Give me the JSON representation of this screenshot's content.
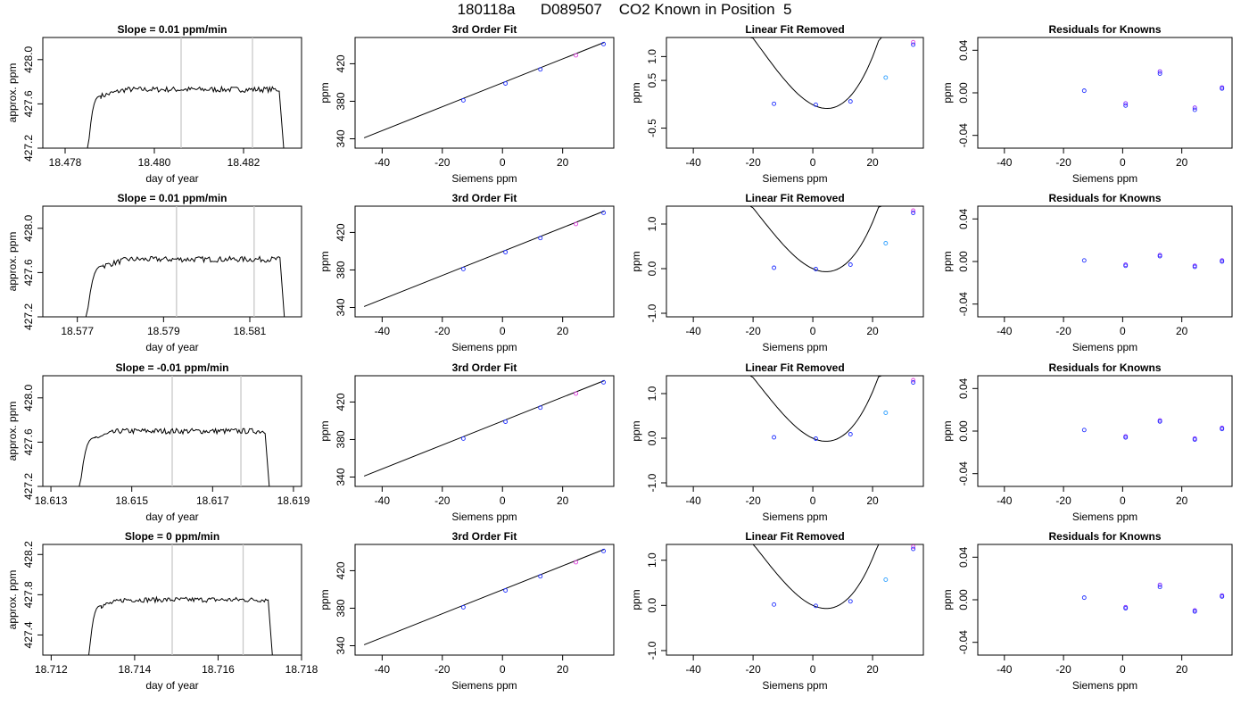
{
  "figure": {
    "title": "180118a      D089507    CO2 Known in Position  5"
  },
  "chart_data": [
    {
      "type": "line",
      "row": 1,
      "title": "Slope =  0.01  ppm/min",
      "xlabel": "day of year",
      "ylabel": "approx. ppm",
      "xlim": [
        18.4775,
        18.4833
      ],
      "ylim": [
        427.2,
        428.2
      ],
      "xticks": [
        18.478,
        18.48,
        18.482
      ],
      "xtick_labels": [
        "18.478",
        "18.480",
        "18.482"
      ],
      "yticks": [
        427.2,
        427.6,
        428.0
      ],
      "ytick_labels": [
        "427.2",
        "427.6",
        "428.0"
      ],
      "vlines": [
        18.4806,
        18.4822
      ],
      "trace": {
        "start": 18.4785,
        "rise_end": 18.4788,
        "end": 18.4829,
        "fall_start": 18.4828,
        "plateau": 427.73,
        "low": 427.1
      }
    },
    {
      "type": "line",
      "row": 1,
      "title": "3rd Order Fit",
      "xlabel": "Siemens ppm",
      "ylabel": "ppm",
      "xlim": [
        -49,
        37
      ],
      "ylim": [
        330,
        448
      ],
      "xticks": [
        -40,
        -20,
        0,
        20
      ],
      "xtick_labels": [
        "-40",
        "-20",
        "0",
        "20"
      ],
      "yticks": [
        340,
        380,
        420
      ],
      "ytick_labels": [
        "340",
        "380",
        "420"
      ],
      "points": [
        [
          -13,
          381
        ],
        [
          1,
          399
        ],
        [
          12.6,
          414
        ],
        [
          24.4,
          429
        ],
        [
          33.6,
          441
        ]
      ],
      "curve_x": [
        -46,
        34
      ],
      "curve_y": [
        341,
        443
      ]
    },
    {
      "type": "line",
      "row": 1,
      "title": "Linear Fit Removed",
      "xlabel": "Siemens ppm",
      "ylabel": "ppm",
      "xlim": [
        -49,
        37
      ],
      "ylim": [
        -0.92,
        1.4
      ],
      "xticks": [
        -40,
        -20,
        0,
        20
      ],
      "xtick_labels": [
        "-40",
        "-20",
        "0",
        "20"
      ],
      "yticks": [
        -0.5,
        0.5,
        1.0
      ],
      "ytick_labels": [
        "-0.5",
        "0.5",
        "1.0"
      ],
      "points": [
        [
          -13,
          0.01
        ],
        [
          1,
          -0.01
        ],
        [
          12.6,
          0.06
        ],
        [
          24.4,
          0.56
        ],
        [
          33.6,
          1.3
        ],
        [
          33.6,
          1.25
        ]
      ],
      "cubic": {
        "a": 5.56e-05,
        "b": 0.003,
        "c": -0.032,
        "d": -0.01
      },
      "curve_x": [
        -46,
        34
      ]
    },
    {
      "type": "scatter",
      "row": 1,
      "title": "Residuals for Knowns",
      "xlabel": "Siemens ppm",
      "ylabel": "ppm",
      "xlim": [
        -49,
        37
      ],
      "ylim": [
        -0.052,
        0.052
      ],
      "xticks": [
        -40,
        -20,
        0,
        20
      ],
      "xtick_labels": [
        "-40",
        "-20",
        "0",
        "20"
      ],
      "yticks": [
        -0.04,
        0.0,
        0.04
      ],
      "ytick_labels": [
        "-0.04",
        "0.00",
        "0.04"
      ],
      "points": [
        [
          -13,
          0.002
        ],
        [
          1,
          -0.01
        ],
        [
          1,
          -0.012
        ],
        [
          12.6,
          0.02
        ],
        [
          12.6,
          0.018
        ],
        [
          24.4,
          -0.014
        ],
        [
          24.4,
          -0.016
        ],
        [
          33.6,
          0.005
        ],
        [
          33.6,
          0.004
        ]
      ]
    },
    {
      "type": "line",
      "row": 2,
      "title": "Slope =  0.01  ppm/min",
      "xlabel": "day of year",
      "ylabel": "approx. ppm",
      "xlim": [
        18.5762,
        18.5822
      ],
      "ylim": [
        427.2,
        428.2
      ],
      "xticks": [
        18.577,
        18.579,
        18.581
      ],
      "xtick_labels": [
        "18.577",
        "18.579",
        "18.581"
      ],
      "yticks": [
        427.2,
        427.6,
        428.0
      ],
      "ytick_labels": [
        "427.2",
        "427.6",
        "428.0"
      ],
      "vlines": [
        18.5793,
        18.5811
      ],
      "trace": {
        "start": 18.5772,
        "rise_end": 18.5776,
        "end": 18.5818,
        "fall_start": 18.5817,
        "plateau": 427.72,
        "low": 427.1
      }
    },
    {
      "type": "line",
      "row": 2,
      "title": "3rd Order Fit",
      "xlabel": "Siemens ppm",
      "ylabel": "ppm",
      "xlim": [
        -49,
        37
      ],
      "ylim": [
        330,
        448
      ],
      "xticks": [
        -40,
        -20,
        0,
        20
      ],
      "xtick_labels": [
        "-40",
        "-20",
        "0",
        "20"
      ],
      "yticks": [
        340,
        380,
        420
      ],
      "ytick_labels": [
        "340",
        "380",
        "420"
      ],
      "points": [
        [
          -13,
          381
        ],
        [
          1,
          399
        ],
        [
          12.6,
          414
        ],
        [
          24.4,
          429
        ],
        [
          33.6,
          441
        ]
      ],
      "curve_x": [
        -46,
        34
      ],
      "curve_y": [
        341,
        443
      ]
    },
    {
      "type": "line",
      "row": 2,
      "title": "Linear Fit Removed",
      "xlabel": "Siemens ppm",
      "ylabel": "ppm",
      "xlim": [
        -49,
        37
      ],
      "ylim": [
        -1.08,
        1.4
      ],
      "xticks": [
        -40,
        -20,
        0,
        20
      ],
      "xtick_labels": [
        "-40",
        "-20",
        "0",
        "20"
      ],
      "yticks": [
        -1.0,
        0.0,
        1.0
      ],
      "ytick_labels": [
        "-1.0",
        "0.0",
        "1.0"
      ],
      "points": [
        [
          -13,
          0.02
        ],
        [
          1,
          -0.01
        ],
        [
          12.6,
          0.09
        ],
        [
          24.4,
          0.57
        ],
        [
          33.6,
          1.3
        ],
        [
          33.6,
          1.25
        ]
      ],
      "cubic": {
        "a": 5.51e-05,
        "b": 0.003,
        "c": -0.03,
        "d": 0.0
      },
      "curve_x": [
        -46,
        34
      ]
    },
    {
      "type": "scatter",
      "row": 2,
      "title": "Residuals for Knowns",
      "xlabel": "Siemens ppm",
      "ylabel": "ppm",
      "xlim": [
        -49,
        37
      ],
      "ylim": [
        -0.052,
        0.052
      ],
      "xticks": [
        -40,
        -20,
        0,
        20
      ],
      "xtick_labels": [
        "-40",
        "-20",
        "0",
        "20"
      ],
      "yticks": [
        -0.04,
        0.0,
        0.04
      ],
      "ytick_labels": [
        "-0.04",
        "0.00",
        "0.04"
      ],
      "points": [
        [
          -13,
          0.001
        ],
        [
          1,
          -0.003
        ],
        [
          1,
          -0.004
        ],
        [
          12.6,
          0.006
        ],
        [
          12.6,
          0.005
        ],
        [
          24.4,
          -0.004
        ],
        [
          24.4,
          -0.005
        ],
        [
          33.6,
          0.001
        ],
        [
          33.6,
          0.0
        ]
      ]
    },
    {
      "type": "line",
      "row": 3,
      "title": "Slope =  -0.01  ppm/min",
      "xlabel": "day of year",
      "ylabel": "approx. ppm",
      "xlim": [
        18.6128,
        18.6192
      ],
      "ylim": [
        427.2,
        428.2
      ],
      "xticks": [
        18.613,
        18.615,
        18.617,
        18.619
      ],
      "xtick_labels": [
        "18.613",
        "18.615",
        "18.617",
        "18.619"
      ],
      "yticks": [
        427.2,
        427.6,
        428.0
      ],
      "ytick_labels": [
        "427.2",
        "427.6",
        "428.0"
      ],
      "vlines": [
        18.616,
        18.6177
      ],
      "trace": {
        "start": 18.6137,
        "rise_end": 18.6141,
        "end": 18.6184,
        "fall_start": 18.6183,
        "plateau": 427.7,
        "low": 427.1
      }
    },
    {
      "type": "line",
      "row": 3,
      "title": "3rd Order Fit",
      "xlabel": "Siemens ppm",
      "ylabel": "ppm",
      "xlim": [
        -49,
        37
      ],
      "ylim": [
        330,
        448
      ],
      "xticks": [
        -40,
        -20,
        0,
        20
      ],
      "xtick_labels": [
        "-40",
        "-20",
        "0",
        "20"
      ],
      "yticks": [
        340,
        380,
        420
      ],
      "ytick_labels": [
        "340",
        "380",
        "420"
      ],
      "points": [
        [
          -13,
          381
        ],
        [
          1,
          399
        ],
        [
          12.6,
          414
        ],
        [
          24.4,
          429
        ],
        [
          33.6,
          441
        ]
      ],
      "curve_x": [
        -46,
        34
      ],
      "curve_y": [
        341,
        443
      ]
    },
    {
      "type": "line",
      "row": 3,
      "title": "Linear Fit Removed",
      "xlabel": "Siemens ppm",
      "ylabel": "ppm",
      "xlim": [
        -49,
        37
      ],
      "ylim": [
        -1.08,
        1.4
      ],
      "xticks": [
        -40,
        -20,
        0,
        20
      ],
      "xtick_labels": [
        "-40",
        "-20",
        "0",
        "20"
      ],
      "yticks": [
        -1.0,
        0.0,
        1.0
      ],
      "ytick_labels": [
        "-1.0",
        "0.0",
        "1.0"
      ],
      "points": [
        [
          -13,
          0.02
        ],
        [
          1,
          -0.01
        ],
        [
          12.6,
          0.09
        ],
        [
          24.4,
          0.57
        ],
        [
          33.6,
          1.3
        ],
        [
          33.6,
          1.25
        ]
      ],
      "cubic": {
        "a": 5.51e-05,
        "b": 0.003,
        "c": -0.03,
        "d": 0.0
      },
      "curve_x": [
        -46,
        34
      ]
    },
    {
      "type": "scatter",
      "row": 3,
      "title": "Residuals for Knowns",
      "xlabel": "Siemens ppm",
      "ylabel": "ppm",
      "xlim": [
        -49,
        37
      ],
      "ylim": [
        -0.052,
        0.052
      ],
      "xticks": [
        -40,
        -20,
        0,
        20
      ],
      "xtick_labels": [
        "-40",
        "-20",
        "0",
        "20"
      ],
      "yticks": [
        -0.04,
        0.0,
        0.04
      ],
      "ytick_labels": [
        "-0.04",
        "0.00",
        "0.04"
      ],
      "points": [
        [
          -13,
          0.001
        ],
        [
          1,
          -0.005
        ],
        [
          1,
          -0.006
        ],
        [
          12.6,
          0.01
        ],
        [
          12.6,
          0.009
        ],
        [
          24.4,
          -0.007
        ],
        [
          24.4,
          -0.008
        ],
        [
          33.6,
          0.003
        ],
        [
          33.6,
          0.002
        ]
      ]
    },
    {
      "type": "line",
      "row": 4,
      "title": "Slope =  0  ppm/min",
      "xlabel": "day of year",
      "ylabel": "approx. ppm",
      "xlim": [
        18.7118,
        18.718
      ],
      "ylim": [
        427.2,
        428.3
      ],
      "xticks": [
        18.712,
        18.714,
        18.716,
        18.718
      ],
      "xtick_labels": [
        "18.712",
        "18.714",
        "18.716",
        "18.718"
      ],
      "yticks": [
        427.4,
        427.8,
        428.2
      ],
      "ytick_labels": [
        "427.4",
        "427.8",
        "428.2"
      ],
      "vlines": [
        18.7149,
        18.7166
      ],
      "trace": {
        "start": 18.7129,
        "rise_end": 18.7132,
        "end": 18.7173,
        "fall_start": 18.7172,
        "plateau": 427.75,
        "low": 427.15
      }
    },
    {
      "type": "line",
      "row": 4,
      "title": "3rd Order Fit",
      "xlabel": "Siemens ppm",
      "ylabel": "ppm",
      "xlim": [
        -49,
        37
      ],
      "ylim": [
        330,
        448
      ],
      "xticks": [
        -40,
        -20,
        0,
        20
      ],
      "xtick_labels": [
        "-40",
        "-20",
        "0",
        "20"
      ],
      "yticks": [
        340,
        380,
        420
      ],
      "ytick_labels": [
        "340",
        "380",
        "420"
      ],
      "points": [
        [
          -13,
          381
        ],
        [
          1,
          399
        ],
        [
          12.6,
          414
        ],
        [
          24.4,
          429
        ],
        [
          33.6,
          441
        ]
      ],
      "curve_x": [
        -46,
        34
      ],
      "curve_y": [
        341,
        443
      ]
    },
    {
      "type": "line",
      "row": 4,
      "title": "Linear Fit Removed",
      "xlabel": "Siemens ppm",
      "ylabel": "ppm",
      "xlim": [
        -49,
        37
      ],
      "ylim": [
        -1.1,
        1.35
      ],
      "xticks": [
        -40,
        -20,
        0,
        20
      ],
      "xtick_labels": [
        "-40",
        "-20",
        "0",
        "20"
      ],
      "yticks": [
        -1.0,
        0.0,
        1.0
      ],
      "ytick_labels": [
        "-1.0",
        "0.0",
        "1.0"
      ],
      "points": [
        [
          -13,
          0.02
        ],
        [
          1,
          -0.01
        ],
        [
          12.6,
          0.09
        ],
        [
          24.4,
          0.57
        ],
        [
          33.6,
          1.3
        ],
        [
          33.6,
          1.25
        ]
      ],
      "cubic": {
        "a": 5.51e-05,
        "b": 0.003,
        "c": -0.03,
        "d": 0.0
      },
      "curve_x": [
        -46,
        34
      ]
    },
    {
      "type": "scatter",
      "row": 4,
      "title": "Residuals for Knowns",
      "xlabel": "Siemens ppm",
      "ylabel": "ppm",
      "xlim": [
        -49,
        37
      ],
      "ylim": [
        -0.052,
        0.052
      ],
      "xticks": [
        -40,
        -20,
        0,
        20
      ],
      "xtick_labels": [
        "-40",
        "-20",
        "0",
        "20"
      ],
      "yticks": [
        -0.04,
        0.0,
        0.04
      ],
      "ytick_labels": [
        "-0.04",
        "0.00",
        "0.04"
      ],
      "points": [
        [
          -13,
          0.002
        ],
        [
          1,
          -0.007
        ],
        [
          1,
          -0.008
        ],
        [
          12.6,
          0.014
        ],
        [
          12.6,
          0.012
        ],
        [
          24.4,
          -0.01
        ],
        [
          24.4,
          -0.011
        ],
        [
          33.6,
          0.004
        ],
        [
          33.6,
          0.003
        ]
      ]
    }
  ]
}
